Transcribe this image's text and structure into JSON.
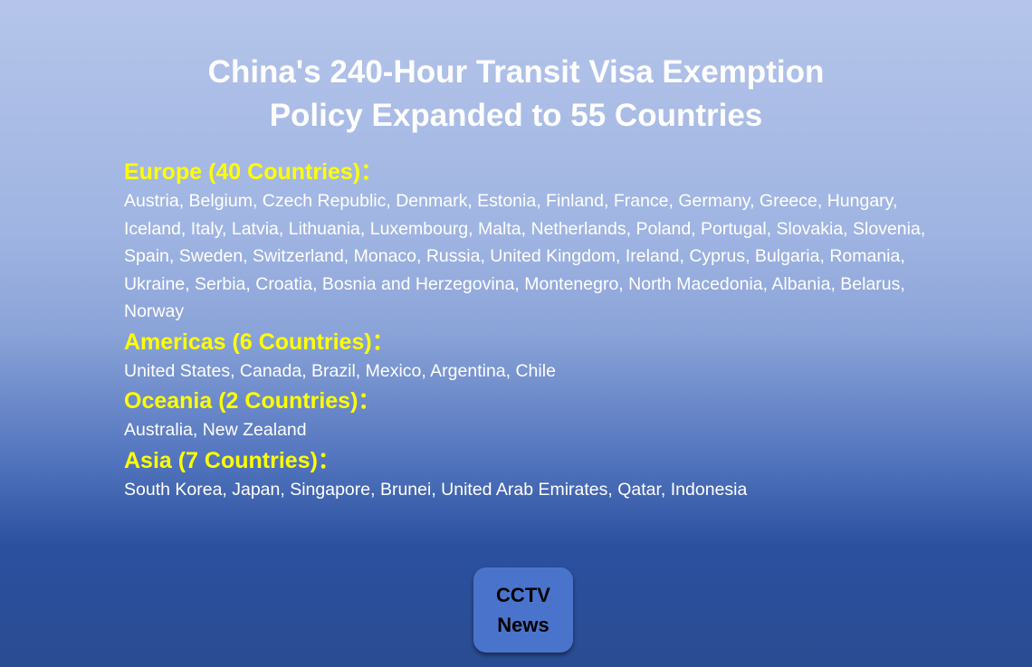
{
  "title": {
    "line1": "China's 240-Hour Transit Visa Exemption",
    "line2": "Policy Expanded to 55 Countries"
  },
  "regions": [
    {
      "heading": "Europe (40 Countries)：",
      "countries": "Austria, Belgium, Czech Republic, Denmark, Estonia, Finland, France, Germany, Greece, Hungary, Iceland, Italy, Latvia, Lithuania, Luxembourg, Malta, Netherlands, Poland, Portugal, Slovakia, Slovenia, Spain, Sweden, Switzerland, Monaco, Russia, United Kingdom, Ireland, Cyprus, Bulgaria, Romania, Ukraine, Serbia, Croatia, Bosnia and Herzegovina, Montenegro, North Macedonia, Albania, Belarus, Norway"
    },
    {
      "heading": "Americas (6 Countries)：",
      "countries": "United States, Canada, Brazil, Mexico, Argentina, Chile"
    },
    {
      "heading": "Oceania (2 Countries)：",
      "countries": "Australia, New Zealand"
    },
    {
      "heading": "Asia (7 Countries)：",
      "countries": "South Korea, Japan, Singapore, Brunei, United Arab Emirates, Qatar, Indonesia"
    }
  ],
  "badge": {
    "line1": "CCTV",
    "line2": "News"
  },
  "colors": {
    "heading": "#ffff00",
    "text": "#ffffff",
    "badge": "#4a74cc"
  }
}
